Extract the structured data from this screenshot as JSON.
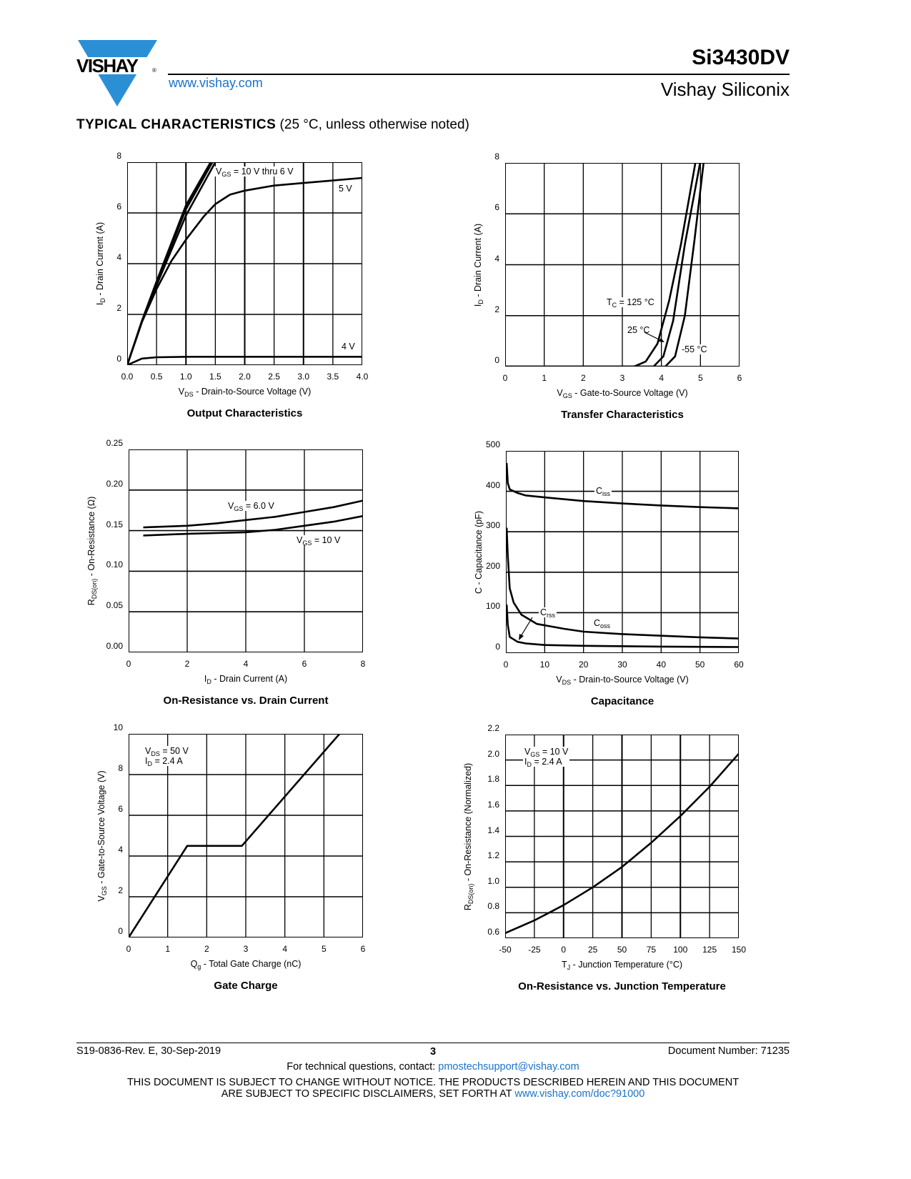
{
  "header": {
    "logo_text": "VISHAY",
    "url": "www.vishay.com",
    "part_number": "Si3430DV",
    "company": "Vishay Siliconix",
    "accent": "#2b8fd6"
  },
  "section": {
    "title_bold": "TYPICAL CHARACTERISTICS",
    "title_rest": " (25 °C, unless otherwise noted)"
  },
  "chart_data": [
    {
      "type": "line",
      "title": "Output Characteristics",
      "xlabel_main": "V",
      "xlabel_sub": "DS",
      "xlabel_rest": " - Drain-to-Source Voltage (V)",
      "ylabel_main": "I",
      "ylabel_sub": "D",
      "ylabel_rest": " - Drain Current (A)",
      "xlim": [
        0,
        4
      ],
      "ylim": [
        0,
        8
      ],
      "xticks": [
        "0.0",
        "0.5",
        "1.0",
        "1.5",
        "2.0",
        "2.5",
        "3.0",
        "3.5",
        "4.0"
      ],
      "yticks": [
        "0",
        "2",
        "4",
        "6",
        "8"
      ],
      "grid": true,
      "annotations": {
        "vgs_main": "V",
        "vgs_sub": "GS",
        "vgs_rest": " = 10 V thru 6 V",
        "v5": "5 V",
        "v4": "4 V"
      },
      "series": [
        {
          "name": "VGS = 10 V",
          "x": [
            0,
            0.25,
            0.5,
            1.0,
            1.42
          ],
          "y": [
            0,
            1.75,
            3.3,
            6.3,
            8
          ]
        },
        {
          "name": "VGS = 8 V",
          "x": [
            0,
            0.25,
            0.5,
            1.0,
            1.45
          ],
          "y": [
            0,
            1.72,
            3.25,
            6.15,
            8
          ]
        },
        {
          "name": "VGS = 6 V",
          "x": [
            0,
            0.25,
            0.5,
            1.0,
            1.5
          ],
          "y": [
            0,
            1.7,
            3.15,
            5.9,
            8
          ]
        },
        {
          "name": "VGS = 5 V",
          "x": [
            0,
            0.25,
            0.5,
            0.75,
            1.0,
            1.3,
            1.5,
            1.75,
            2.0,
            2.5,
            3.0,
            3.5,
            4.0
          ],
          "y": [
            0,
            1.7,
            3.0,
            4.1,
            4.95,
            5.85,
            6.35,
            6.72,
            6.88,
            7.08,
            7.18,
            7.28,
            7.38
          ]
        },
        {
          "name": "VGS = 4 V",
          "x": [
            0,
            0.25,
            0.5,
            1.0,
            2.0,
            4.0
          ],
          "y": [
            0,
            0.26,
            0.31,
            0.33,
            0.33,
            0.33
          ]
        }
      ]
    },
    {
      "type": "line",
      "title": "Transfer Characteristics",
      "xlabel_main": "V",
      "xlabel_sub": "GS",
      "xlabel_rest": " - Gate-to-Source Voltage (V)",
      "ylabel_main": "I",
      "ylabel_sub": "D",
      "ylabel_rest": " - Drain Current (A)",
      "xlim": [
        0,
        6
      ],
      "ylim": [
        0,
        8
      ],
      "xticks": [
        "0",
        "1",
        "2",
        "3",
        "4",
        "5",
        "6"
      ],
      "yticks": [
        "0",
        "2",
        "4",
        "6",
        "8"
      ],
      "grid": true,
      "annotations": {
        "tc_main": "T",
        "tc_sub": "C",
        "tc_rest": " = 125 °C",
        "t25": "25 °C",
        "t55": "-55 °C"
      },
      "series": [
        {
          "name": "TC = 125 °C",
          "x": [
            0,
            3.3,
            3.6,
            3.9,
            4.2,
            4.5,
            4.87
          ],
          "y": [
            0,
            0,
            0.2,
            0.9,
            2.6,
            4.8,
            8
          ]
        },
        {
          "name": "25 °C",
          "x": [
            0,
            3.8,
            4.05,
            4.3,
            4.6,
            4.99
          ],
          "y": [
            0,
            0,
            0.4,
            1.8,
            4.8,
            8
          ]
        },
        {
          "name": "-55 °C",
          "x": [
            0,
            4.1,
            4.35,
            4.6,
            4.85,
            5.08
          ],
          "y": [
            0,
            0,
            0.4,
            2.0,
            5.0,
            8
          ]
        }
      ]
    },
    {
      "type": "line",
      "title": "On-Resistance vs. Drain Current",
      "xlabel_main": "I",
      "xlabel_sub": "D",
      "xlabel_rest": " - Drain Current (A)",
      "ylabel_main": "R",
      "ylabel_sub": "DS(on)",
      "ylabel_rest": " - On-Resistance (Ω)",
      "xlim": [
        0,
        8
      ],
      "ylim": [
        0,
        0.25
      ],
      "xticks": [
        "0",
        "2",
        "4",
        "6",
        "8"
      ],
      "yticks": [
        "0.00",
        "0.05",
        "0.10",
        "0.15",
        "0.20",
        "0.25"
      ],
      "grid": true,
      "annotations": {
        "a_main": "V",
        "a_sub": "GS",
        "a_rest": " = 6.0 V",
        "b_main": "V",
        "b_sub": "GS",
        "b_rest": " = 10 V"
      },
      "series": [
        {
          "name": "VGS = 6.0 V",
          "x": [
            0.5,
            2,
            3,
            4,
            5,
            6,
            7,
            8
          ],
          "y": [
            0.154,
            0.156,
            0.159,
            0.163,
            0.167,
            0.173,
            0.179,
            0.187
          ]
        },
        {
          "name": "VGS = 10 V",
          "x": [
            0.5,
            2,
            3,
            4,
            5,
            6,
            7,
            8
          ],
          "y": [
            0.144,
            0.146,
            0.147,
            0.148,
            0.151,
            0.156,
            0.161,
            0.168
          ]
        }
      ]
    },
    {
      "type": "line",
      "title": "Capacitance",
      "xlabel_main": "V",
      "xlabel_sub": "DS",
      "xlabel_rest": " - Drain-to-Source Voltage (V)",
      "ylabel_main": "C",
      "ylabel_sub": "",
      "ylabel_rest": " - Capacitance (pF)",
      "xlim": [
        0,
        60
      ],
      "ylim": [
        0,
        500
      ],
      "xticks": [
        "0",
        "10",
        "20",
        "30",
        "40",
        "50",
        "60"
      ],
      "yticks": [
        "0",
        "100",
        "200",
        "300",
        "400",
        "500"
      ],
      "grid": true,
      "annotations": {
        "ciss_main": "C",
        "ciss_sub": "iss",
        "crss_main": "C",
        "crss_sub": "rss",
        "coss_main": "C",
        "coss_sub": "oss"
      },
      "series": [
        {
          "name": "Ciss",
          "x": [
            0.2,
            0.5,
            1,
            3,
            5,
            10,
            20,
            30,
            40,
            50,
            60
          ],
          "y": [
            470,
            420,
            405,
            396,
            390,
            385,
            376,
            370,
            365,
            361,
            358
          ]
        },
        {
          "name": "Coss",
          "x": [
            0.2,
            0.5,
            1,
            2,
            4,
            8,
            15,
            20,
            30,
            40,
            50,
            60
          ],
          "y": [
            310,
            240,
            160,
            125,
            95,
            72,
            60,
            53,
            47,
            43,
            39,
            36
          ]
        },
        {
          "name": "Crss",
          "x": [
            0.2,
            0.5,
            1,
            3,
            5,
            10,
            20,
            40,
            60
          ],
          "y": [
            120,
            70,
            40,
            28,
            24,
            20,
            18,
            16,
            15
          ]
        }
      ]
    },
    {
      "type": "line",
      "title": "Gate Charge",
      "xlabel_main": "Q",
      "xlabel_sub": "g",
      "xlabel_rest": " - Total Gate Charge (nC)",
      "ylabel_main": "V",
      "ylabel_sub": "GS",
      "ylabel_rest": " - Gate-to-Source Voltage (V)",
      "xlim": [
        0,
        6
      ],
      "ylim": [
        0,
        10
      ],
      "xticks": [
        "0",
        "1",
        "2",
        "3",
        "4",
        "5",
        "6"
      ],
      "yticks": [
        "0",
        "2",
        "4",
        "6",
        "8",
        "10"
      ],
      "grid": true,
      "annotations": {
        "a_main": "V",
        "a_sub": "DS",
        "a_rest": " = 50 V",
        "b_main": "I",
        "b_sub": "D",
        "b_rest": " = 2.4 A"
      },
      "series": [
        {
          "name": "VGS",
          "x": [
            0,
            1.5,
            2.9,
            5.4
          ],
          "y": [
            0,
            4.5,
            4.5,
            10
          ]
        }
      ]
    },
    {
      "type": "line",
      "title": "On-Resistance vs. Junction Temperature",
      "xlabel_main": "T",
      "xlabel_sub": "J",
      "xlabel_rest": " - Junction Temperature (°C)",
      "ylabel_main": "R",
      "ylabel_sub": "DS(on)",
      "ylabel_rest": " - On-Resistance (Normalized)",
      "xlim": [
        -50,
        150
      ],
      "ylim": [
        0.6,
        2.2
      ],
      "xticks": [
        "-50",
        "-25",
        "0",
        "25",
        "50",
        "75",
        "100",
        "125",
        "150"
      ],
      "yticks": [
        "0.6",
        "0.8",
        "1.0",
        "1.2",
        "1.4",
        "1.6",
        "1.8",
        "2.0",
        "2.2"
      ],
      "grid": true,
      "annotations": {
        "a_main": "V",
        "a_sub": "GS",
        "a_rest": " = 10 V",
        "b_main": "I",
        "b_sub": "D",
        "b_rest": " = 2.4 A"
      },
      "series": [
        {
          "name": "RDS(on)",
          "x": [
            -50,
            -25,
            0,
            25,
            50,
            75,
            100,
            125,
            150
          ],
          "y": [
            0.64,
            0.74,
            0.86,
            1.0,
            1.16,
            1.35,
            1.56,
            1.79,
            2.05
          ]
        }
      ]
    }
  ],
  "footer": {
    "revision": "S19-0836-Rev. E, 30-Sep-2019",
    "page": "3",
    "doc_number": "Document Number: 71235",
    "contact_text": "For technical questions, contact: ",
    "contact_email": "pmostechsupport@vishay.com",
    "disclaimer_1": "THIS DOCUMENT IS SUBJECT TO CHANGE WITHOUT NOTICE. THE PRODUCTS DESCRIBED HEREIN AND THIS DOCUMENT",
    "disclaimer_2": "ARE SUBJECT TO SPECIFIC DISCLAIMERS, SET FORTH AT ",
    "disclaimer_link": "www.vishay.com/doc?91000"
  }
}
